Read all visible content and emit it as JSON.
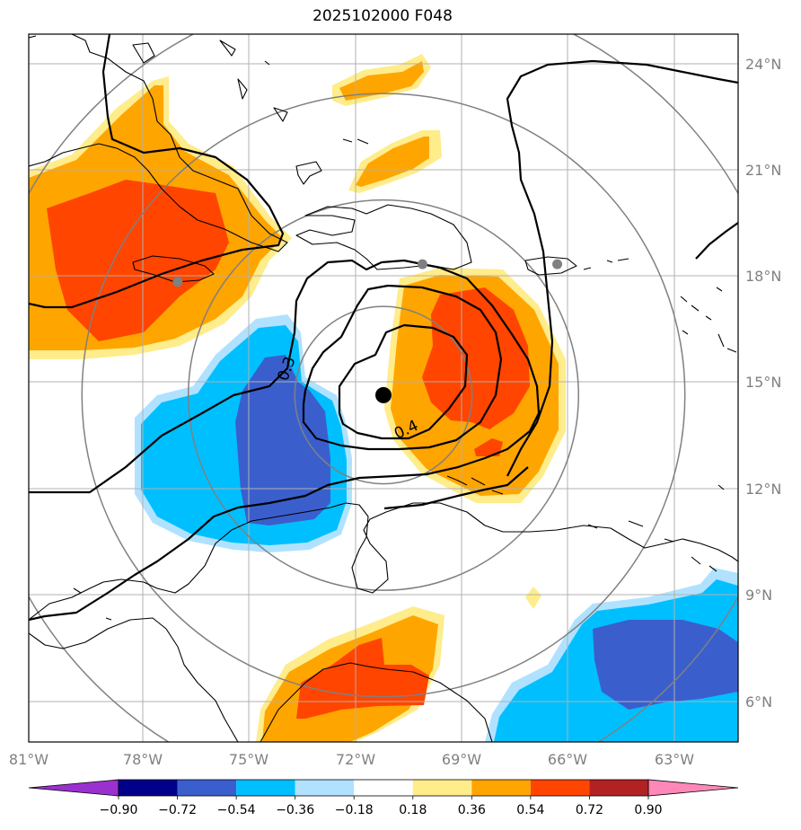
{
  "title": "2025102000 F048",
  "map": {
    "lon_range": [
      -81,
      -61
    ],
    "lat_range": [
      5,
      25
    ],
    "lon_ticks": [
      "81°W",
      "78°W",
      "75°W",
      "72°W",
      "69°W",
      "66°W",
      "63°W"
    ],
    "lat_ticks": [
      "24°N",
      "21°N",
      "18°N",
      "15°N",
      "12°N",
      "9°N",
      "6°N"
    ],
    "grid": true,
    "storm_center": {
      "lon": -71.0,
      "lat": 14.8
    },
    "range_rings_deg": [
      2.5,
      5.5,
      8.5,
      11.5
    ],
    "station_markers": [
      {
        "lon": -76.8,
        "lat": 18.0
      },
      {
        "lon": -69.9,
        "lat": 18.5
      },
      {
        "lon": -66.1,
        "lat": 18.5
      }
    ],
    "contour_labels": [
      {
        "text": "0.3",
        "lon": -73.6,
        "lat": 15.5
      },
      {
        "text": "0.4",
        "lon": -70.3,
        "lat": 13.7
      }
    ]
  },
  "colorbar": {
    "levels": [
      "−0.90",
      "−0.72",
      "−0.54",
      "−0.36",
      "−0.18",
      "0.18",
      "0.36",
      "0.54",
      "0.72",
      "0.90"
    ],
    "colors": [
      "#9b30d0",
      "#00008b",
      "#3a5fcd",
      "#00bfff",
      "#b0e2ff",
      "#ffffff",
      "#ffec8b",
      "#ffa500",
      "#ff4500",
      "#b22222",
      "#ff88b8"
    ],
    "extend": "both"
  }
}
